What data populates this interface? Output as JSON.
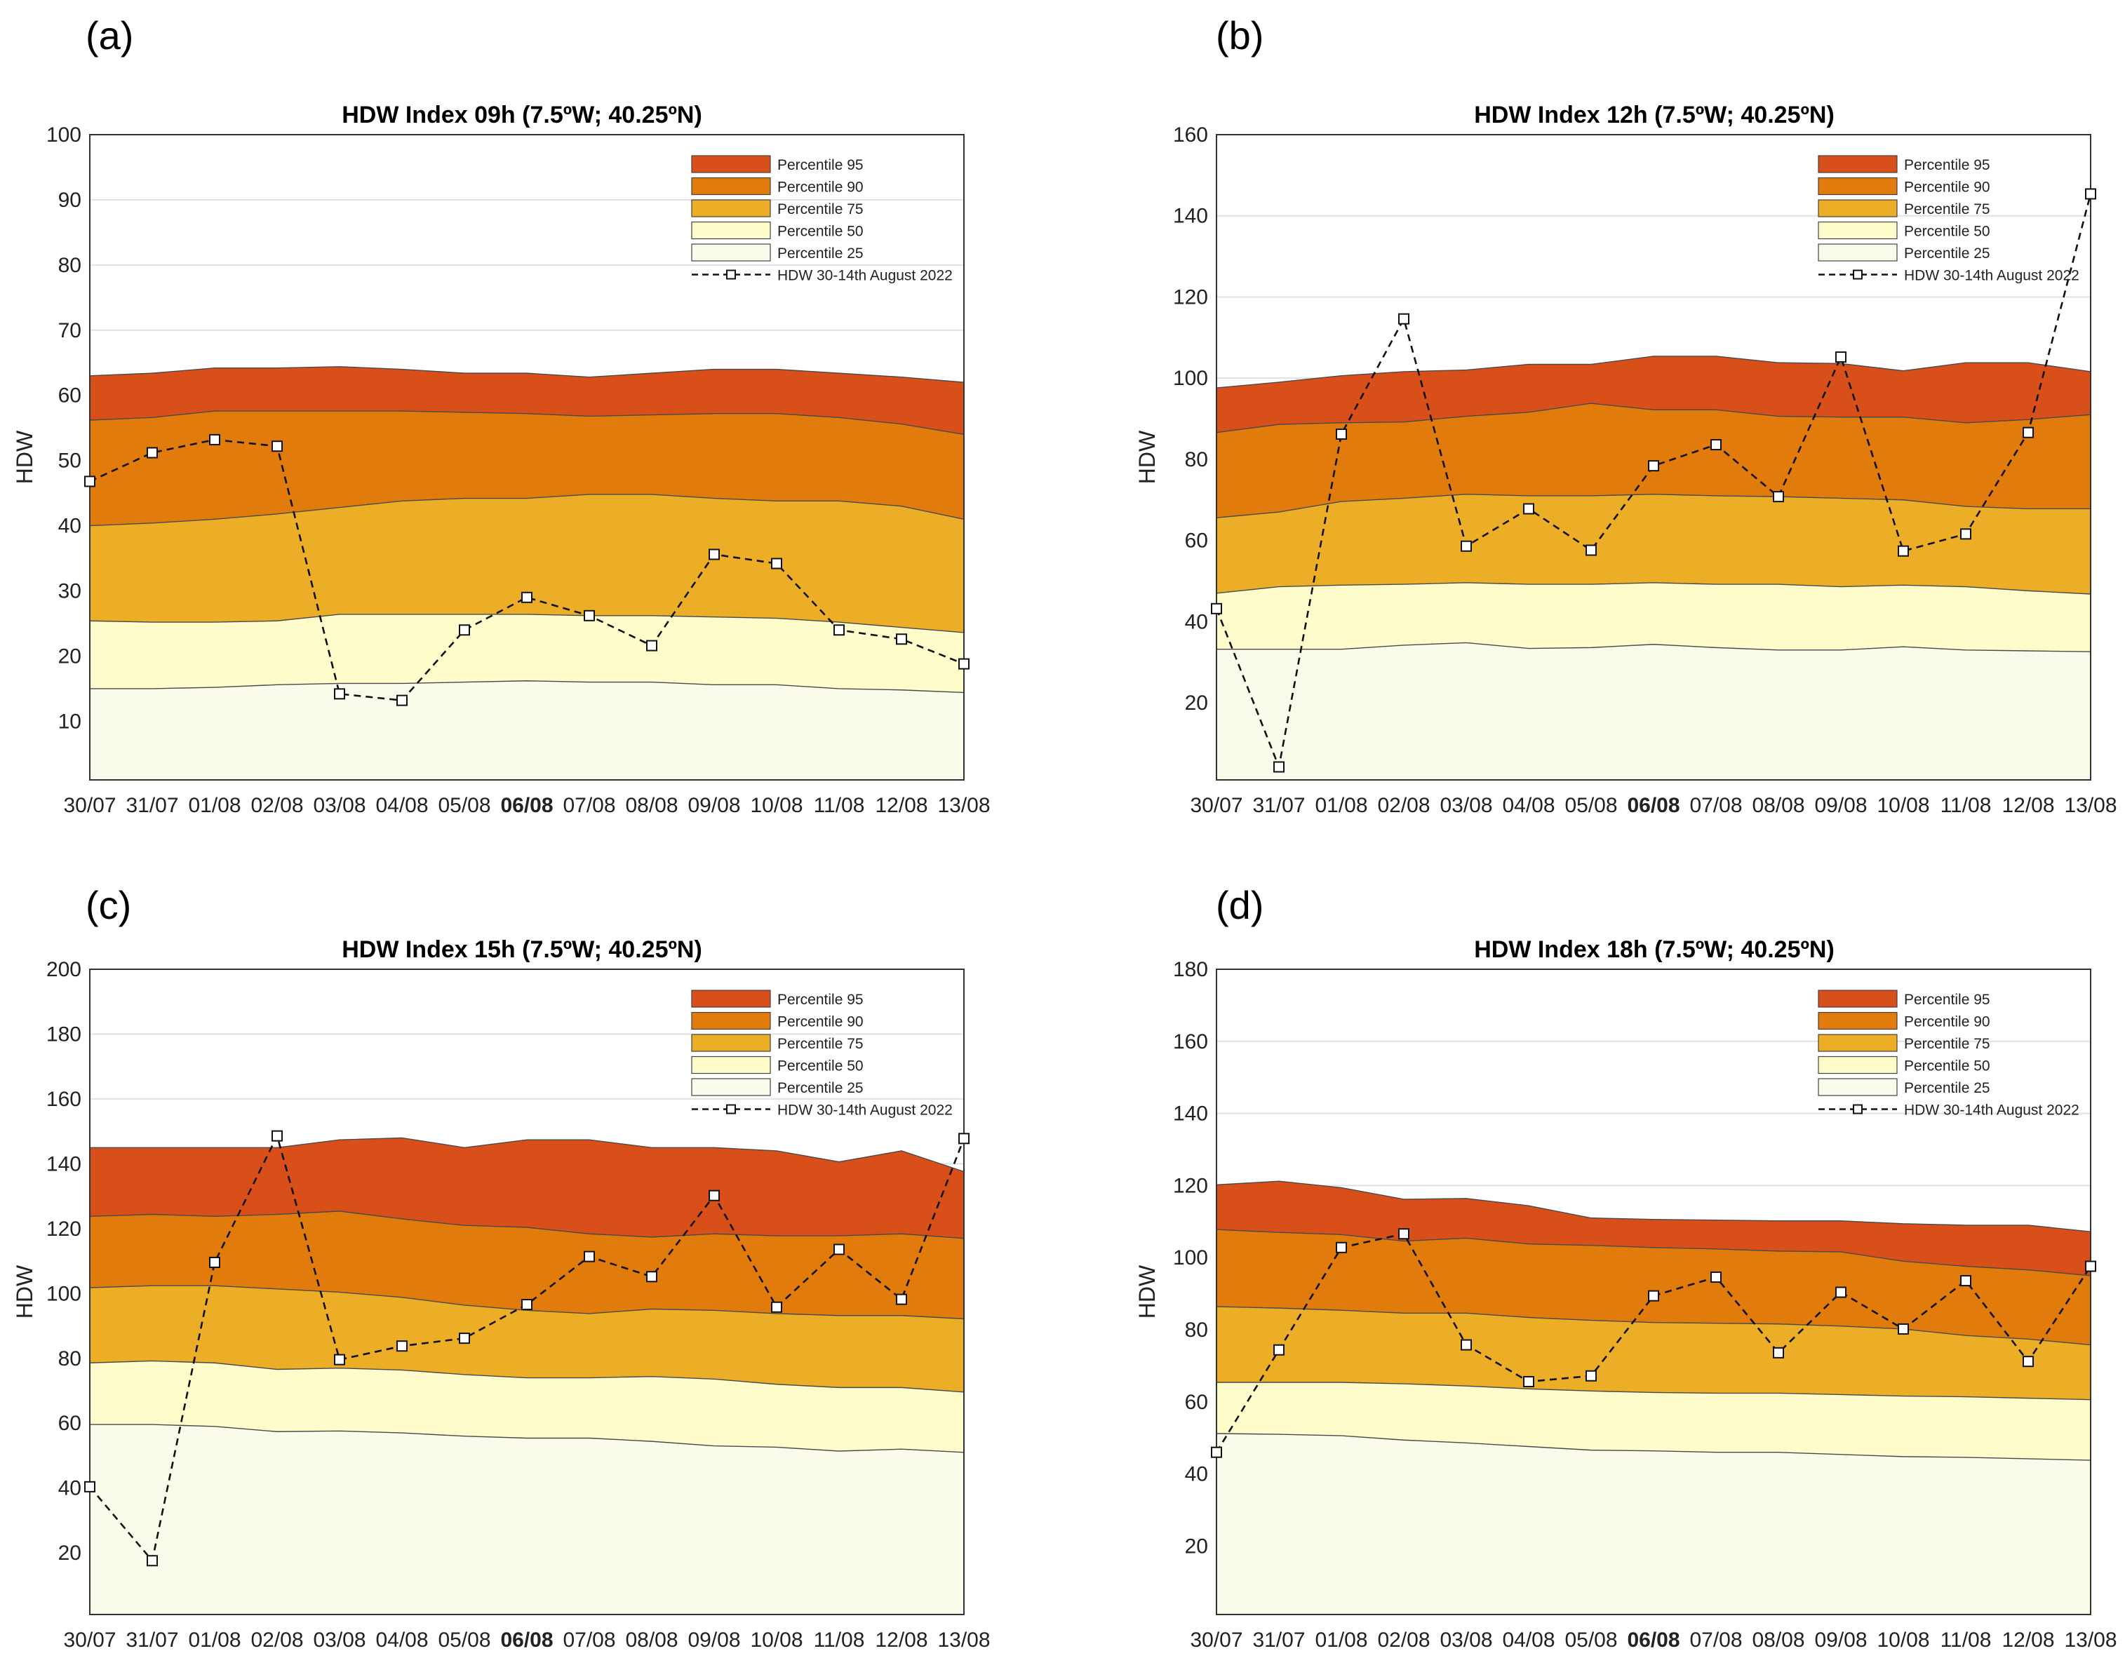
{
  "panel_labels": [
    "(a)",
    "(b)",
    "(c)",
    "(d)"
  ],
  "colors": {
    "p95": "#d94f1a",
    "p90": "#e07b0c",
    "p75": "#ebae26",
    "p50": "#fefccb",
    "p25": "#fafbea"
  },
  "chart_data": [
    {
      "type": "area",
      "title": "HDW Index 09h (7.5ºW; 40.25ºN)",
      "xlabel": "",
      "ylabel": "HDW",
      "categories": [
        "30/07",
        "31/07",
        "01/08",
        "02/08",
        "03/08",
        "04/08",
        "05/08",
        "06/08",
        "07/08",
        "08/08",
        "09/08",
        "10/08",
        "11/08",
        "12/08",
        "13/08"
      ],
      "highlight_category": "06/08",
      "ylim": [
        1,
        100
      ],
      "yticks": [
        10,
        20,
        30,
        40,
        50,
        60,
        70,
        80,
        90,
        100
      ],
      "legend": [
        "Percentile 95",
        "Percentile 90",
        "Percentile 75",
        "Percentile 50",
        "Percentile 25",
        "HDW 30-14th August 2022"
      ],
      "legend_position": "top-right",
      "series": [
        {
          "name": "Percentile 95",
          "values": [
            63,
            63.4,
            64.2,
            64.2,
            64.4,
            64,
            63.4,
            63.4,
            62.8,
            63.4,
            64,
            64,
            63.4,
            62.8,
            62
          ]
        },
        {
          "name": "Percentile 90",
          "values": [
            56.2,
            56.6,
            57.6,
            57.6,
            57.6,
            57.6,
            57.4,
            57.2,
            56.8,
            57,
            57.2,
            57.2,
            56.6,
            55.6,
            54
          ]
        },
        {
          "name": "Percentile 75",
          "values": [
            40,
            40.4,
            41,
            41.8,
            42.8,
            43.8,
            44.2,
            44.2,
            44.8,
            44.8,
            44.2,
            43.8,
            43.8,
            43,
            41
          ]
        },
        {
          "name": "Percentile 50",
          "values": [
            25.4,
            25.2,
            25.2,
            25.4,
            26.4,
            26.4,
            26.4,
            26.4,
            26.2,
            26.2,
            26,
            25.8,
            25.2,
            24.4,
            23.6
          ]
        },
        {
          "name": "Percentile 25",
          "values": [
            15,
            15,
            15.2,
            15.6,
            15.8,
            15.8,
            16,
            16.2,
            16,
            16,
            15.6,
            15.6,
            15,
            14.8,
            14.4
          ]
        },
        {
          "name": "HDW 30-14th August 2022",
          "values": [
            46.8,
            51.2,
            53.2,
            52.2,
            14.2,
            13.2,
            24,
            29,
            26.2,
            21.6,
            35.6,
            34.2,
            24,
            22.6,
            18.8
          ]
        }
      ]
    },
    {
      "type": "area",
      "title": "HDW Index 12h (7.5ºW; 40.25ºN)",
      "xlabel": "",
      "ylabel": "HDW",
      "categories": [
        "30/07",
        "31/07",
        "01/08",
        "02/08",
        "03/08",
        "04/08",
        "05/08",
        "06/08",
        "07/08",
        "08/08",
        "09/08",
        "10/08",
        "11/08",
        "12/08",
        "13/08"
      ],
      "highlight_category": "06/08",
      "ylim": [
        1,
        160
      ],
      "yticks": [
        20,
        40,
        60,
        80,
        100,
        120,
        140,
        160
      ],
      "legend": [
        "Percentile 95",
        "Percentile 90",
        "Percentile 75",
        "Percentile 50",
        "Percentile 25",
        "HDW 30-14th August 2022"
      ],
      "legend_position": "top-right",
      "series": [
        {
          "name": "Percentile 95",
          "values": [
            97.6,
            99,
            100.6,
            101.6,
            102,
            103.4,
            103.4,
            105.4,
            105.4,
            103.8,
            103.6,
            101.8,
            103.8,
            103.8,
            101.6
          ]
        },
        {
          "name": "Percentile 90",
          "values": [
            86.6,
            88.6,
            89,
            89.2,
            90.6,
            91.6,
            93.8,
            92.2,
            92.2,
            90.6,
            90.4,
            90.4,
            89,
            89.8,
            91
          ]
        },
        {
          "name": "Percentile 75",
          "values": [
            65.6,
            67,
            69.6,
            70.4,
            71.4,
            71,
            71,
            71.4,
            71,
            70.8,
            70.4,
            70,
            68.4,
            67.8,
            67.8
          ]
        },
        {
          "name": "Percentile 50",
          "values": [
            47,
            48.6,
            49,
            49.2,
            49.6,
            49.2,
            49.2,
            49.6,
            49.2,
            49.2,
            48.6,
            49,
            48.6,
            47.6,
            46.8
          ]
        },
        {
          "name": "Percentile 25",
          "values": [
            33.2,
            33.2,
            33.2,
            34.2,
            34.8,
            33.4,
            33.6,
            34.4,
            33.6,
            33,
            33,
            33.8,
            33,
            32.8,
            32.6
          ]
        },
        {
          "name": "HDW 30-14th August 2022",
          "values": [
            43.2,
            4.2,
            86.2,
            114.6,
            58.6,
            67.8,
            57.6,
            78.4,
            83.6,
            70.8,
            105.2,
            57.4,
            61.6,
            86.6,
            145.4
          ]
        }
      ]
    },
    {
      "type": "area",
      "title": "HDW Index 15h (7.5ºW; 40.25ºN)",
      "xlabel": "",
      "ylabel": "HDW",
      "categories": [
        "30/07",
        "31/07",
        "01/08",
        "02/08",
        "03/08",
        "04/08",
        "05/08",
        "06/08",
        "07/08",
        "08/08",
        "09/08",
        "10/08",
        "11/08",
        "12/08",
        "13/08"
      ],
      "highlight_category": "06/08",
      "ylim": [
        1,
        200
      ],
      "yticks": [
        20,
        40,
        60,
        80,
        100,
        120,
        140,
        160,
        180,
        200
      ],
      "legend": [
        "Percentile 95",
        "Percentile 90",
        "Percentile 75",
        "Percentile 50",
        "Percentile 25",
        "HDW 30-14th August 2022"
      ],
      "legend_position": "top-right",
      "series": [
        {
          "name": "Percentile 95",
          "values": [
            145,
            145,
            145,
            145,
            147.4,
            148,
            145,
            147.4,
            147.4,
            145,
            145,
            144,
            140.6,
            144,
            137.6
          ]
        },
        {
          "name": "Percentile 90",
          "values": [
            123.8,
            124.4,
            123.8,
            124.4,
            125.4,
            123,
            121,
            120.4,
            118.4,
            117.4,
            118.4,
            117.8,
            117.8,
            118.4,
            117
          ]
        },
        {
          "name": "Percentile 75",
          "values": [
            101.8,
            102.4,
            102.4,
            101.4,
            100.4,
            98.8,
            96.4,
            94.8,
            93.8,
            95.2,
            94.8,
            93.8,
            93.2,
            93.2,
            92.2
          ]
        },
        {
          "name": "Percentile 50",
          "values": [
            78.6,
            79.2,
            78.6,
            76.6,
            77,
            76.4,
            75,
            74,
            74,
            74.4,
            73.6,
            72,
            71,
            71,
            69.6
          ]
        },
        {
          "name": "Percentile 25",
          "values": [
            59.6,
            59.6,
            59,
            57.4,
            57.6,
            57,
            56,
            55.4,
            55.4,
            54.4,
            53,
            52.6,
            51.4,
            52,
            51
          ]
        },
        {
          "name": "HDW 30-14th August 2022",
          "values": [
            40.4,
            17.6,
            109.6,
            148.6,
            79.6,
            83.8,
            86.2,
            96.6,
            111.4,
            105.2,
            130.2,
            95.8,
            113.6,
            98.2,
            147.8
          ]
        }
      ]
    },
    {
      "type": "area",
      "title": "HDW Index 18h (7.5ºW; 40.25ºN)",
      "xlabel": "",
      "ylabel": "HDW",
      "categories": [
        "30/07",
        "31/07",
        "01/08",
        "02/08",
        "03/08",
        "04/08",
        "05/08",
        "06/08",
        "07/08",
        "08/08",
        "09/08",
        "10/08",
        "11/08",
        "12/08",
        "13/08"
      ],
      "highlight_category": "06/08",
      "ylim": [
        1,
        180
      ],
      "yticks": [
        20,
        40,
        60,
        80,
        100,
        120,
        140,
        160,
        180
      ],
      "legend": [
        "Percentile 95",
        "Percentile 90",
        "Percentile 75",
        "Percentile 50",
        "Percentile 25",
        "HDW 30-14th August 2022"
      ],
      "legend_position": "top-right",
      "series": [
        {
          "name": "Percentile 95",
          "values": [
            120.2,
            121.2,
            119.4,
            116.2,
            116.4,
            114.4,
            111,
            110.6,
            110.4,
            110.2,
            110.2,
            109.4,
            109,
            109,
            107.2
          ]
        },
        {
          "name": "Percentile 90",
          "values": [
            107.8,
            107,
            106.4,
            104.6,
            105.4,
            103.8,
            103.4,
            102.8,
            102.4,
            101.8,
            101.6,
            99,
            97.6,
            96.6,
            95
          ]
        },
        {
          "name": "Percentile 75",
          "values": [
            86.4,
            86,
            85.4,
            84.6,
            84.6,
            83.4,
            82.6,
            82,
            81.8,
            81.6,
            81,
            80.2,
            78.4,
            77.4,
            75.8
          ]
        },
        {
          "name": "Percentile 50",
          "values": [
            65.4,
            65.4,
            65.4,
            65,
            64.4,
            63.6,
            63,
            62.6,
            62.4,
            62.4,
            62,
            61.6,
            61.4,
            61,
            60.6
          ]
        },
        {
          "name": "Percentile 25",
          "values": [
            51.2,
            51,
            50.6,
            49.4,
            48.6,
            47.6,
            46.6,
            46.4,
            46,
            46,
            45.4,
            44.8,
            44.6,
            44.2,
            43.8
          ]
        },
        {
          "name": "HDW 30-14th August 2022",
          "values": [
            46,
            74.4,
            102.8,
            106.6,
            75.8,
            65.6,
            67.2,
            89.4,
            94.6,
            73.6,
            90.4,
            80.2,
            93.6,
            71.2,
            97.6
          ]
        }
      ]
    }
  ]
}
